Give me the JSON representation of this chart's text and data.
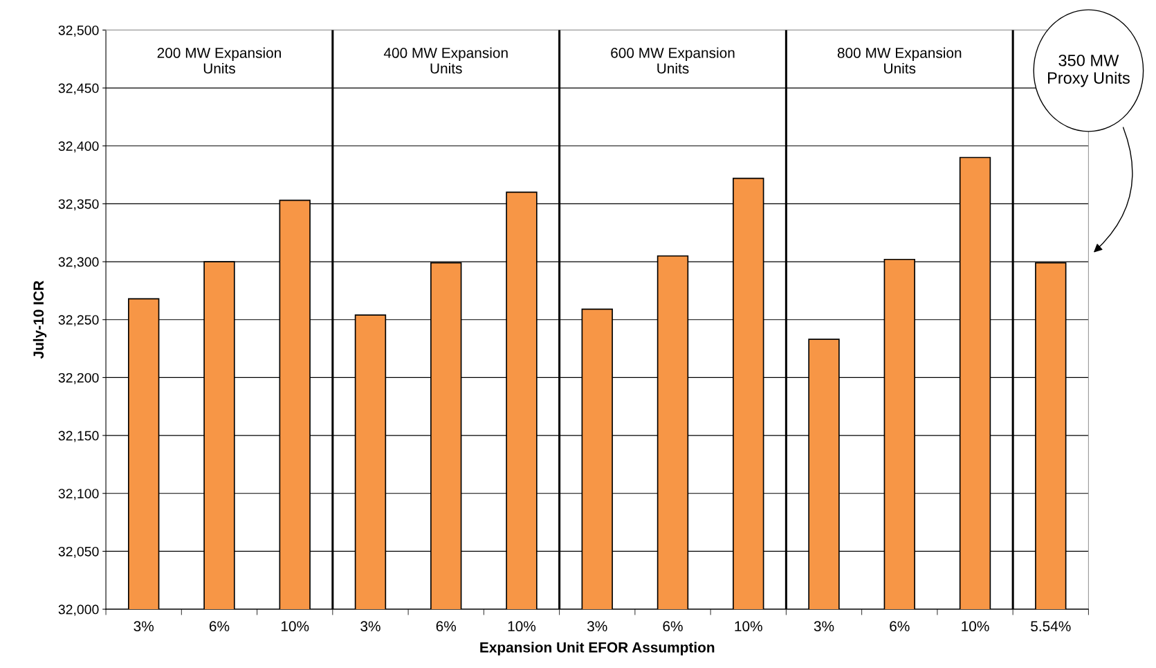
{
  "chart_data": {
    "type": "bar",
    "xlabel": "Expansion Unit EFOR Assumption",
    "ylabel": "July-10 ICR",
    "categories": [
      "3%",
      "6%",
      "10%",
      "3%",
      "6%",
      "10%",
      "3%",
      "6%",
      "10%",
      "3%",
      "6%",
      "10%",
      "5.54%"
    ],
    "values": [
      32268,
      32300,
      32353,
      32254,
      32299,
      32360,
      32259,
      32305,
      32372,
      32233,
      32302,
      32390,
      32299
    ],
    "color": "#f79646",
    "ylim": [
      32000,
      32500
    ],
    "yticks": [
      {
        "value": 32000,
        "label": "32,000"
      },
      {
        "value": 32050,
        "label": "32,050"
      },
      {
        "value": 32100,
        "label": "32,100"
      },
      {
        "value": 32150,
        "label": "32,150"
      },
      {
        "value": 32200,
        "label": "32,200"
      },
      {
        "value": 32250,
        "label": "32,250"
      },
      {
        "value": 32300,
        "label": "32,300"
      },
      {
        "value": 32350,
        "label": "32,350"
      },
      {
        "value": 32400,
        "label": "32,400"
      },
      {
        "value": 32450,
        "label": "32,450"
      },
      {
        "value": 32500,
        "label": "32,500"
      }
    ],
    "grid": "y",
    "annotations": [
      "200 MW Expansion\nUnits",
      "400 MW Expansion\nUnits",
      "600 MW Expansion\nUnits",
      "800 MW Expansion\nUnits",
      "350 MW\nProxy Units"
    ]
  }
}
